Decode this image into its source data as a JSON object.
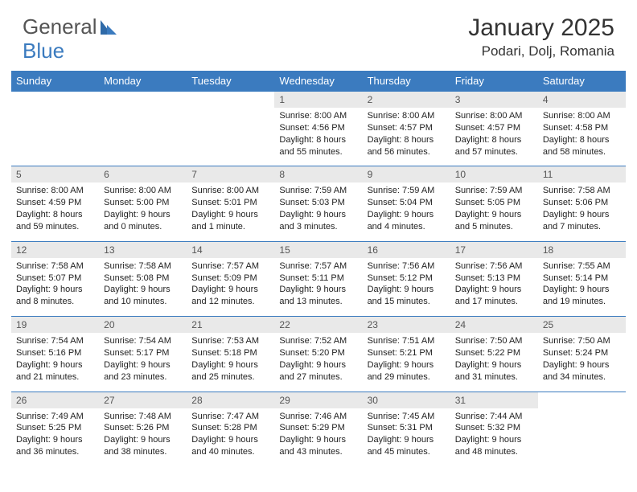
{
  "brand": {
    "part1": "General",
    "part2": "Blue"
  },
  "title": "January 2025",
  "location": "Podari, Dolj, Romania",
  "colors": {
    "header_bg": "#3b7bbf",
    "header_text": "#ffffff",
    "daynum_bg": "#e9e9e9",
    "rule": "#3b7bbf",
    "body_text": "#222222"
  },
  "weekdays": [
    "Sunday",
    "Monday",
    "Tuesday",
    "Wednesday",
    "Thursday",
    "Friday",
    "Saturday"
  ],
  "weeks": [
    [
      null,
      null,
      null,
      {
        "n": "1",
        "sr": "8:00 AM",
        "ss": "4:56 PM",
        "dl": "8 hours and 55 minutes."
      },
      {
        "n": "2",
        "sr": "8:00 AM",
        "ss": "4:57 PM",
        "dl": "8 hours and 56 minutes."
      },
      {
        "n": "3",
        "sr": "8:00 AM",
        "ss": "4:57 PM",
        "dl": "8 hours and 57 minutes."
      },
      {
        "n": "4",
        "sr": "8:00 AM",
        "ss": "4:58 PM",
        "dl": "8 hours and 58 minutes."
      }
    ],
    [
      {
        "n": "5",
        "sr": "8:00 AM",
        "ss": "4:59 PM",
        "dl": "8 hours and 59 minutes."
      },
      {
        "n": "6",
        "sr": "8:00 AM",
        "ss": "5:00 PM",
        "dl": "9 hours and 0 minutes."
      },
      {
        "n": "7",
        "sr": "8:00 AM",
        "ss": "5:01 PM",
        "dl": "9 hours and 1 minute."
      },
      {
        "n": "8",
        "sr": "7:59 AM",
        "ss": "5:03 PM",
        "dl": "9 hours and 3 minutes."
      },
      {
        "n": "9",
        "sr": "7:59 AM",
        "ss": "5:04 PM",
        "dl": "9 hours and 4 minutes."
      },
      {
        "n": "10",
        "sr": "7:59 AM",
        "ss": "5:05 PM",
        "dl": "9 hours and 5 minutes."
      },
      {
        "n": "11",
        "sr": "7:58 AM",
        "ss": "5:06 PM",
        "dl": "9 hours and 7 minutes."
      }
    ],
    [
      {
        "n": "12",
        "sr": "7:58 AM",
        "ss": "5:07 PM",
        "dl": "9 hours and 8 minutes."
      },
      {
        "n": "13",
        "sr": "7:58 AM",
        "ss": "5:08 PM",
        "dl": "9 hours and 10 minutes."
      },
      {
        "n": "14",
        "sr": "7:57 AM",
        "ss": "5:09 PM",
        "dl": "9 hours and 12 minutes."
      },
      {
        "n": "15",
        "sr": "7:57 AM",
        "ss": "5:11 PM",
        "dl": "9 hours and 13 minutes."
      },
      {
        "n": "16",
        "sr": "7:56 AM",
        "ss": "5:12 PM",
        "dl": "9 hours and 15 minutes."
      },
      {
        "n": "17",
        "sr": "7:56 AM",
        "ss": "5:13 PM",
        "dl": "9 hours and 17 minutes."
      },
      {
        "n": "18",
        "sr": "7:55 AM",
        "ss": "5:14 PM",
        "dl": "9 hours and 19 minutes."
      }
    ],
    [
      {
        "n": "19",
        "sr": "7:54 AM",
        "ss": "5:16 PM",
        "dl": "9 hours and 21 minutes."
      },
      {
        "n": "20",
        "sr": "7:54 AM",
        "ss": "5:17 PM",
        "dl": "9 hours and 23 minutes."
      },
      {
        "n": "21",
        "sr": "7:53 AM",
        "ss": "5:18 PM",
        "dl": "9 hours and 25 minutes."
      },
      {
        "n": "22",
        "sr": "7:52 AM",
        "ss": "5:20 PM",
        "dl": "9 hours and 27 minutes."
      },
      {
        "n": "23",
        "sr": "7:51 AM",
        "ss": "5:21 PM",
        "dl": "9 hours and 29 minutes."
      },
      {
        "n": "24",
        "sr": "7:50 AM",
        "ss": "5:22 PM",
        "dl": "9 hours and 31 minutes."
      },
      {
        "n": "25",
        "sr": "7:50 AM",
        "ss": "5:24 PM",
        "dl": "9 hours and 34 minutes."
      }
    ],
    [
      {
        "n": "26",
        "sr": "7:49 AM",
        "ss": "5:25 PM",
        "dl": "9 hours and 36 minutes."
      },
      {
        "n": "27",
        "sr": "7:48 AM",
        "ss": "5:26 PM",
        "dl": "9 hours and 38 minutes."
      },
      {
        "n": "28",
        "sr": "7:47 AM",
        "ss": "5:28 PM",
        "dl": "9 hours and 40 minutes."
      },
      {
        "n": "29",
        "sr": "7:46 AM",
        "ss": "5:29 PM",
        "dl": "9 hours and 43 minutes."
      },
      {
        "n": "30",
        "sr": "7:45 AM",
        "ss": "5:31 PM",
        "dl": "9 hours and 45 minutes."
      },
      {
        "n": "31",
        "sr": "7:44 AM",
        "ss": "5:32 PM",
        "dl": "9 hours and 48 minutes."
      },
      null
    ]
  ],
  "labels": {
    "sunrise": "Sunrise:",
    "sunset": "Sunset:",
    "daylight": "Daylight:"
  }
}
